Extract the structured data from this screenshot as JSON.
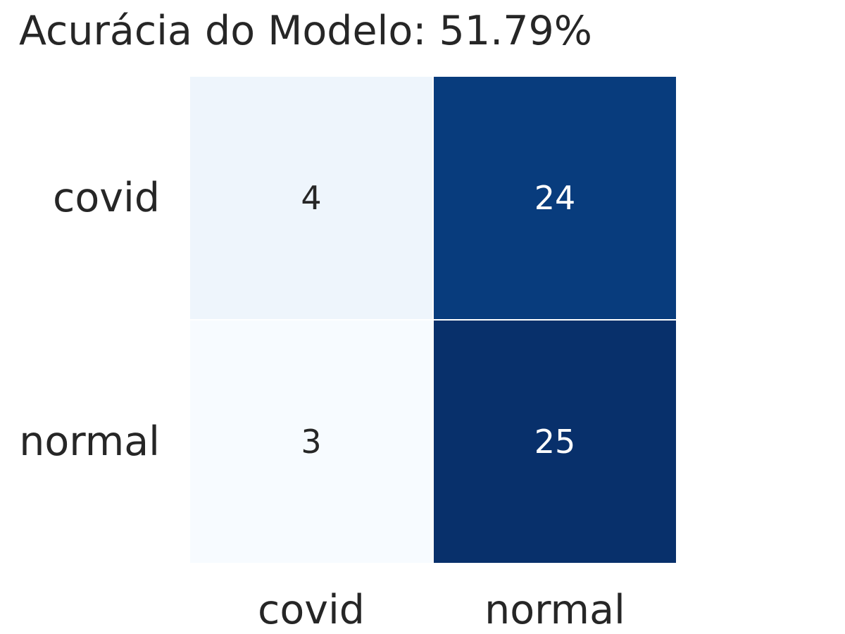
{
  "chart_data": {
    "type": "heatmap",
    "title": "Acurácia do Modelo: 51.79%",
    "x_categories": [
      "covid",
      "normal"
    ],
    "y_categories": [
      "covid",
      "normal"
    ],
    "values": [
      [
        4,
        24
      ],
      [
        3,
        25
      ]
    ],
    "colormap": "Blues",
    "colorbar": false,
    "grid": false,
    "colors": {
      "low": "#f7fbff",
      "high": "#08306b",
      "text_dark": "#262626",
      "text_light": "#ffffff"
    }
  }
}
